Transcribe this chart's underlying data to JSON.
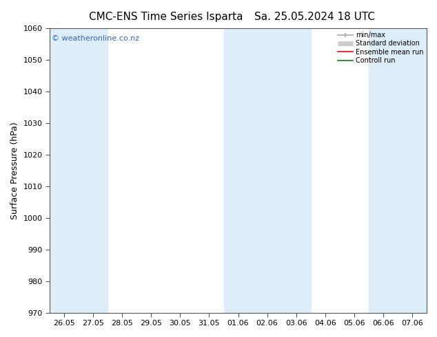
{
  "title": "CMC-ENS Time Series Isparta",
  "title_right": "Sa. 25.05.2024 18 UTC",
  "ylabel": "Surface Pressure (hPa)",
  "watermark": "© weatheronline.co.nz",
  "ylim": [
    970,
    1060
  ],
  "yticks": [
    970,
    980,
    990,
    1000,
    1010,
    1020,
    1030,
    1040,
    1050,
    1060
  ],
  "x_labels": [
    "26.05",
    "27.05",
    "28.05",
    "29.05",
    "30.05",
    "31.05",
    "01.06",
    "02.06",
    "03.06",
    "04.06",
    "05.06",
    "06.06",
    "07.06"
  ],
  "shaded_indices": [
    0,
    1,
    6,
    7,
    8,
    11,
    12
  ],
  "bg_color": "#ffffff",
  "plot_bg_color": "#ffffff",
  "shaded_color": "#ddeef8",
  "legend_items": [
    {
      "label": "min/max",
      "color": "#aaaaaa",
      "lw": 1.2
    },
    {
      "label": "Standard deviation",
      "color": "#cccccc",
      "lw": 5
    },
    {
      "label": "Ensemble mean run",
      "color": "#ff0000",
      "lw": 1.2
    },
    {
      "label": "Controll run",
      "color": "#008800",
      "lw": 1.2
    }
  ],
  "title_fontsize": 11,
  "ylabel_fontsize": 9,
  "tick_fontsize": 8,
  "watermark_color": "#3366cc",
  "spine_color": "#555555"
}
